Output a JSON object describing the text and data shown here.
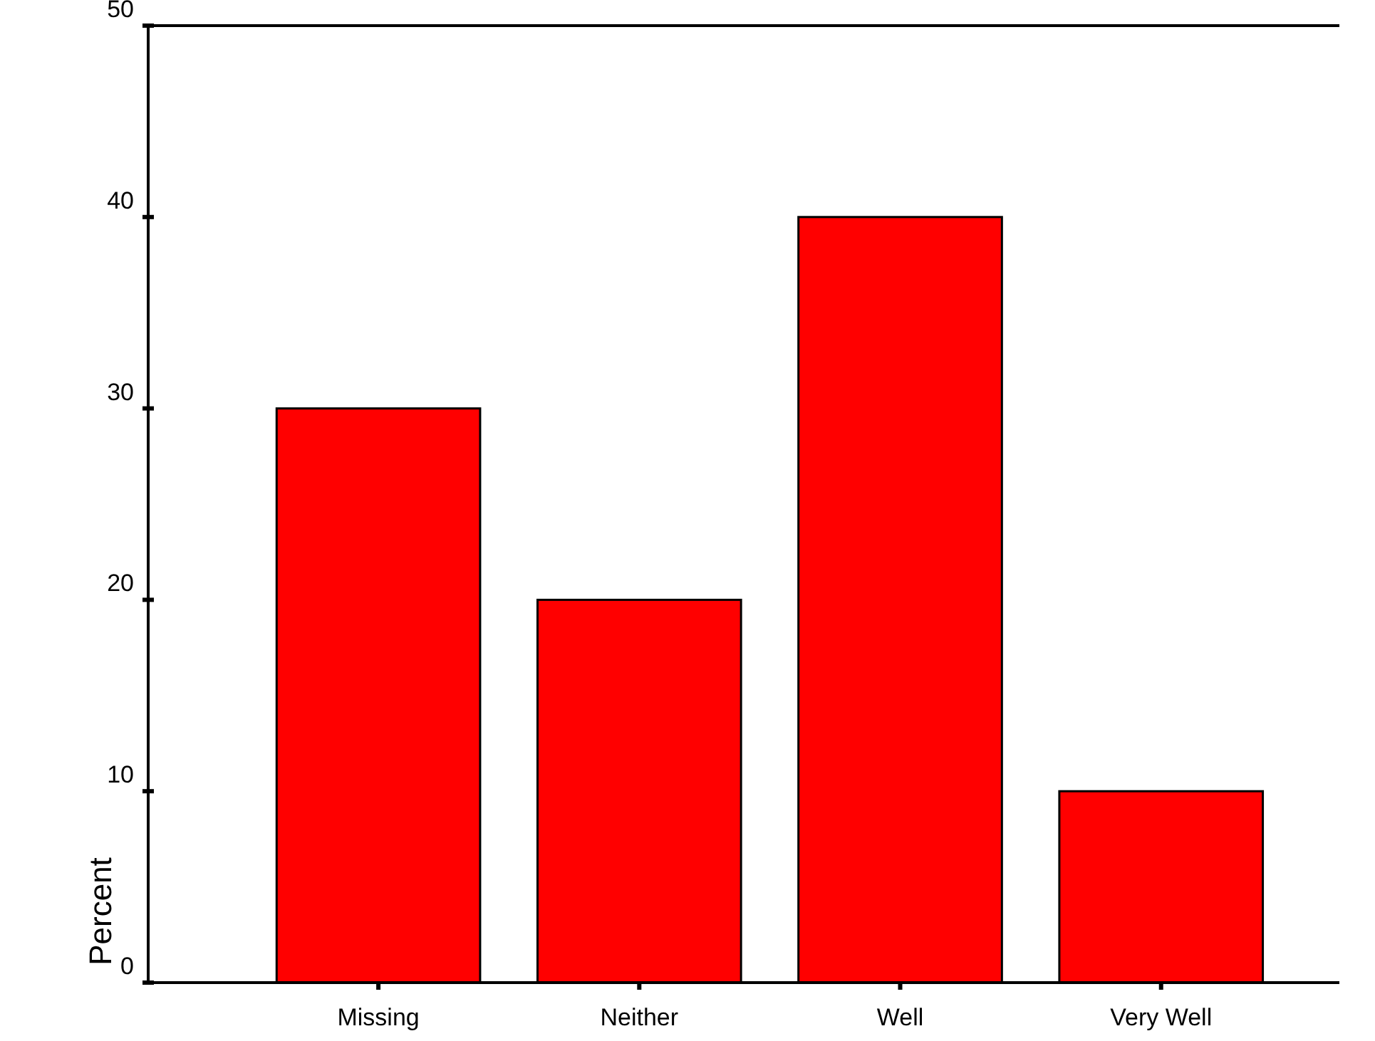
{
  "chart_data": {
    "type": "bar",
    "ylabel": "Percent",
    "categories": [
      "Missing",
      "Neither",
      "Well",
      "Very Well"
    ],
    "values": [
      30,
      20,
      40,
      10
    ],
    "color": "#ff0000",
    "ylim": [
      0,
      50
    ],
    "yticks": [
      0,
      10,
      20,
      30,
      40,
      50
    ],
    "grid": false
  }
}
